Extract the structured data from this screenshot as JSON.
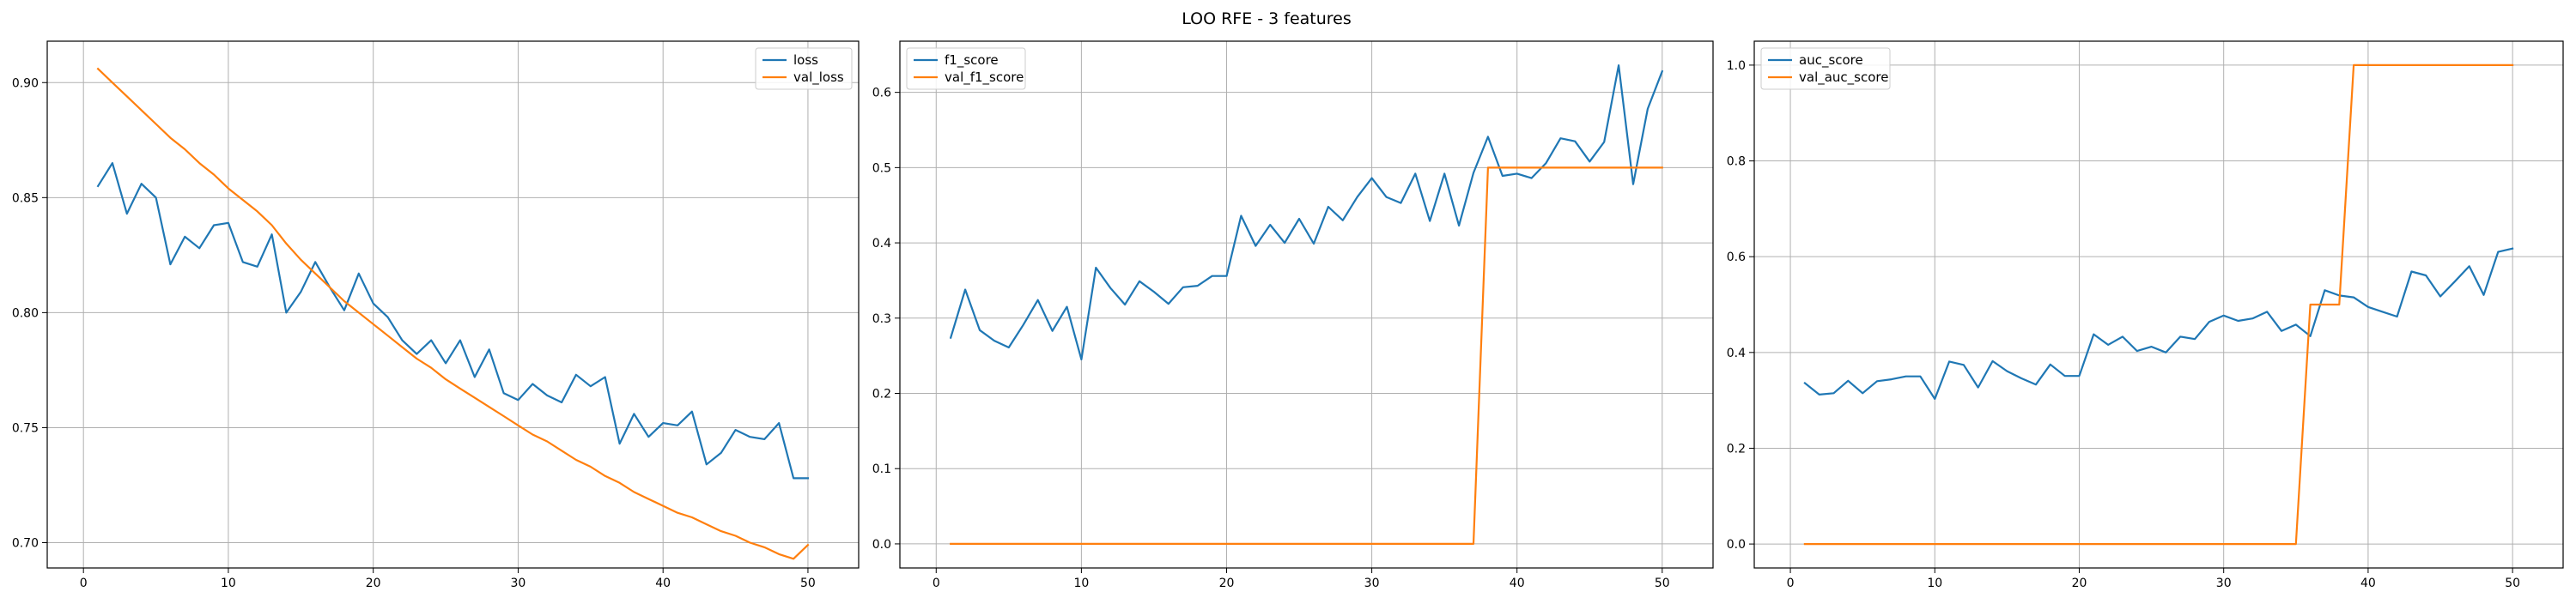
{
  "figure": {
    "title": "LOO RFE - 3 features"
  },
  "colors": {
    "train": "#1f77b4",
    "val": "#ff7f0e",
    "grid": "#b0b0b0",
    "axes": "#000000"
  },
  "chart_data": [
    {
      "type": "line",
      "title": "",
      "xlabel": "",
      "ylabel": "",
      "xlim": [
        -2.5,
        53.5
      ],
      "ylim": [
        0.689,
        0.918
      ],
      "xticks": [
        0,
        10,
        20,
        30,
        40,
        50
      ],
      "xtick_labels": [
        "0",
        "10",
        "20",
        "30",
        "40",
        "50"
      ],
      "yticks": [
        0.7,
        0.75,
        0.8,
        0.85,
        0.9
      ],
      "ytick_labels": [
        "0.70",
        "0.75",
        "0.80",
        "0.85",
        "0.90"
      ],
      "grid": true,
      "legend_position": "top-right",
      "x": [
        1,
        2,
        3,
        4,
        5,
        6,
        7,
        8,
        9,
        10,
        11,
        12,
        13,
        14,
        15,
        16,
        17,
        18,
        19,
        20,
        21,
        22,
        23,
        24,
        25,
        26,
        27,
        28,
        29,
        30,
        31,
        32,
        33,
        34,
        35,
        36,
        37,
        38,
        39,
        40,
        41,
        42,
        43,
        44,
        45,
        46,
        47,
        48,
        49,
        50
      ],
      "series": [
        {
          "name": "loss",
          "color": "#1f77b4",
          "values": [
            0.855,
            0.865,
            0.843,
            0.856,
            0.85,
            0.821,
            0.833,
            0.828,
            0.838,
            0.839,
            0.822,
            0.82,
            0.834,
            0.8,
            0.809,
            0.822,
            0.811,
            0.801,
            0.817,
            0.804,
            0.798,
            0.788,
            0.782,
            0.788,
            0.778,
            0.788,
            0.772,
            0.784,
            0.765,
            0.762,
            0.769,
            0.764,
            0.761,
            0.773,
            0.768,
            0.772,
            0.743,
            0.756,
            0.746,
            0.752,
            0.751,
            0.757,
            0.734,
            0.739,
            0.749,
            0.746,
            0.745,
            0.752,
            0.728,
            0.728
          ]
        },
        {
          "name": "val_loss",
          "color": "#ff7f0e",
          "values": [
            0.906,
            0.9,
            0.894,
            0.888,
            0.882,
            0.876,
            0.871,
            0.865,
            0.86,
            0.854,
            0.849,
            0.844,
            0.838,
            0.83,
            0.823,
            0.817,
            0.811,
            0.805,
            0.8,
            0.795,
            0.79,
            0.785,
            0.78,
            0.776,
            0.771,
            0.767,
            0.763,
            0.759,
            0.755,
            0.751,
            0.747,
            0.744,
            0.74,
            0.736,
            0.733,
            0.729,
            0.726,
            0.722,
            0.719,
            0.716,
            0.713,
            0.711,
            0.708,
            0.705,
            0.703,
            0.7,
            0.698,
            0.695,
            0.693,
            0.699
          ]
        }
      ]
    },
    {
      "type": "line",
      "title": "",
      "xlabel": "",
      "ylabel": "",
      "xlim": [
        -2.5,
        53.5
      ],
      "ylim": [
        -0.032,
        0.668
      ],
      "xticks": [
        0,
        10,
        20,
        30,
        40,
        50
      ],
      "xtick_labels": [
        "0",
        "10",
        "20",
        "30",
        "40",
        "50"
      ],
      "yticks": [
        0.0,
        0.1,
        0.2,
        0.3,
        0.4,
        0.5,
        0.6
      ],
      "ytick_labels": [
        "0.0",
        "0.1",
        "0.2",
        "0.3",
        "0.4",
        "0.5",
        "0.6"
      ],
      "grid": true,
      "legend_position": "top-left",
      "x": [
        1,
        2,
        3,
        4,
        5,
        6,
        7,
        8,
        9,
        10,
        11,
        12,
        13,
        14,
        15,
        16,
        17,
        18,
        19,
        20,
        21,
        22,
        23,
        24,
        25,
        26,
        27,
        28,
        29,
        30,
        31,
        32,
        33,
        34,
        35,
        36,
        37,
        38,
        39,
        40,
        41,
        42,
        43,
        44,
        45,
        46,
        47,
        48,
        49,
        50
      ],
      "series": [
        {
          "name": "f1_score",
          "color": "#1f77b4",
          "values": [
            0.274,
            0.338,
            0.284,
            0.27,
            0.261,
            0.291,
            0.324,
            0.283,
            0.315,
            0.245,
            0.367,
            0.34,
            0.318,
            0.349,
            0.335,
            0.319,
            0.341,
            0.343,
            0.356,
            0.356,
            0.436,
            0.396,
            0.424,
            0.4,
            0.432,
            0.399,
            0.448,
            0.43,
            0.461,
            0.486,
            0.461,
            0.453,
            0.492,
            0.429,
            0.492,
            0.423,
            0.493,
            0.541,
            0.489,
            0.492,
            0.486,
            0.506,
            0.539,
            0.535,
            0.508,
            0.534,
            0.636,
            0.478,
            0.578,
            0.628
          ]
        },
        {
          "name": "val_f1_score",
          "color": "#ff7f0e",
          "values": [
            0,
            0,
            0,
            0,
            0,
            0,
            0,
            0,
            0,
            0,
            0,
            0,
            0,
            0,
            0,
            0,
            0,
            0,
            0,
            0,
            0,
            0,
            0,
            0,
            0,
            0,
            0,
            0,
            0,
            0,
            0,
            0,
            0,
            0,
            0,
            0,
            0,
            0.5,
            0.5,
            0.5,
            0.5,
            0.5,
            0.5,
            0.5,
            0.5,
            0.5,
            0.5,
            0.5,
            0.5,
            0.5
          ]
        }
      ]
    },
    {
      "type": "line",
      "title": "",
      "xlabel": "",
      "ylabel": "",
      "xlim": [
        -2.5,
        53.5
      ],
      "ylim": [
        -0.05,
        1.05
      ],
      "xticks": [
        0,
        10,
        20,
        30,
        40,
        50
      ],
      "xtick_labels": [
        "0",
        "10",
        "20",
        "30",
        "40",
        "50"
      ],
      "yticks": [
        0.0,
        0.2,
        0.4,
        0.6,
        0.8,
        1.0
      ],
      "ytick_labels": [
        "0.0",
        "0.2",
        "0.4",
        "0.6",
        "0.8",
        "1.0"
      ],
      "grid": true,
      "legend_position": "top-left",
      "x": [
        1,
        2,
        3,
        4,
        5,
        6,
        7,
        8,
        9,
        10,
        11,
        12,
        13,
        14,
        15,
        16,
        17,
        18,
        19,
        20,
        21,
        22,
        23,
        24,
        25,
        26,
        27,
        28,
        29,
        30,
        31,
        32,
        33,
        34,
        35,
        36,
        37,
        38,
        39,
        40,
        41,
        42,
        43,
        44,
        45,
        46,
        47,
        48,
        49,
        50
      ],
      "series": [
        {
          "name": "auc_score",
          "color": "#1f77b4",
          "values": [
            0.336,
            0.312,
            0.315,
            0.341,
            0.315,
            0.34,
            0.344,
            0.35,
            0.35,
            0.303,
            0.381,
            0.374,
            0.327,
            0.382,
            0.361,
            0.346,
            0.333,
            0.375,
            0.351,
            0.351,
            0.438,
            0.416,
            0.433,
            0.403,
            0.412,
            0.4,
            0.433,
            0.428,
            0.464,
            0.477,
            0.466,
            0.471,
            0.485,
            0.445,
            0.458,
            0.434,
            0.53,
            0.519,
            0.515,
            0.495,
            0.485,
            0.475,
            0.569,
            0.561,
            0.517,
            0.548,
            0.58,
            0.52,
            0.61,
            0.617
          ]
        },
        {
          "name": "val_auc_score",
          "color": "#ff7f0e",
          "values": [
            0,
            0,
            0,
            0,
            0,
            0,
            0,
            0,
            0,
            0,
            0,
            0,
            0,
            0,
            0,
            0,
            0,
            0,
            0,
            0,
            0,
            0,
            0,
            0,
            0,
            0,
            0,
            0,
            0,
            0,
            0,
            0,
            0,
            0,
            0,
            0.5,
            0.5,
            0.5,
            1.0,
            1.0,
            1.0,
            1.0,
            1.0,
            1.0,
            1.0,
            1.0,
            1.0,
            1.0,
            1.0,
            1.0
          ]
        }
      ]
    }
  ]
}
